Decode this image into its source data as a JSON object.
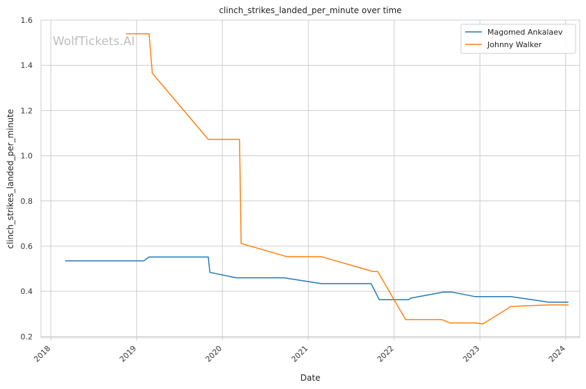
{
  "chart_data": {
    "type": "line",
    "title": "clinch_strikes_landed_per_minute over time",
    "xlabel": "Date",
    "ylabel": "clinch_strikes_landed_per_minute",
    "watermark": "WolfTickets.AI",
    "xlim": [
      "2017-11-20",
      "2024-03-01"
    ],
    "ylim": [
      0.195,
      1.6
    ],
    "x_ticks": [
      "2018",
      "2019",
      "2020",
      "2021",
      "2022",
      "2023",
      "2024"
    ],
    "y_ticks": [
      "0.2",
      "0.4",
      "0.6",
      "0.8",
      "1.0",
      "1.2",
      "1.4",
      "1.6"
    ],
    "grid": true,
    "legend_position": "top-right",
    "series": [
      {
        "name": "Magomed Ankalaev",
        "color": "#1f77b4",
        "points": [
          [
            "2018-03-03",
            0.535
          ],
          [
            "2019-02-01",
            0.535
          ],
          [
            "2019-02-23",
            0.552
          ],
          [
            "2019-11-02",
            0.552
          ],
          [
            "2019-11-09",
            0.484
          ],
          [
            "2020-02-29",
            0.46
          ],
          [
            "2020-09-19",
            0.46
          ],
          [
            "2021-02-27",
            0.434
          ],
          [
            "2021-09-25",
            0.434
          ],
          [
            "2021-10-30",
            0.363
          ],
          [
            "2022-03-05",
            0.363
          ],
          [
            "2022-03-12",
            0.37
          ],
          [
            "2022-07-30",
            0.397
          ],
          [
            "2022-09-03",
            0.397
          ],
          [
            "2022-12-10",
            0.377
          ],
          [
            "2023-05-13",
            0.377
          ],
          [
            "2023-10-21",
            0.352
          ],
          [
            "2024-01-13",
            0.352
          ]
        ]
      },
      {
        "name": "Johnny Walker",
        "color": "#ff7f0e",
        "points": [
          [
            "2018-11-17",
            1.54
          ],
          [
            "2019-02-23",
            1.54
          ],
          [
            "2019-03-09",
            1.365
          ],
          [
            "2019-11-02",
            1.072
          ],
          [
            "2020-03-14",
            1.072
          ],
          [
            "2020-03-21",
            0.612
          ],
          [
            "2020-10-03",
            0.553
          ],
          [
            "2021-02-27",
            0.553
          ],
          [
            "2021-10-02",
            0.488
          ],
          [
            "2021-10-23",
            0.488
          ],
          [
            "2022-02-19",
            0.275
          ],
          [
            "2022-07-23",
            0.275
          ],
          [
            "2022-08-27",
            0.26
          ],
          [
            "2022-12-10",
            0.26
          ],
          [
            "2023-01-14",
            0.256
          ],
          [
            "2023-05-13",
            0.333
          ],
          [
            "2023-10-21",
            0.34
          ],
          [
            "2024-01-13",
            0.34
          ]
        ]
      }
    ]
  }
}
